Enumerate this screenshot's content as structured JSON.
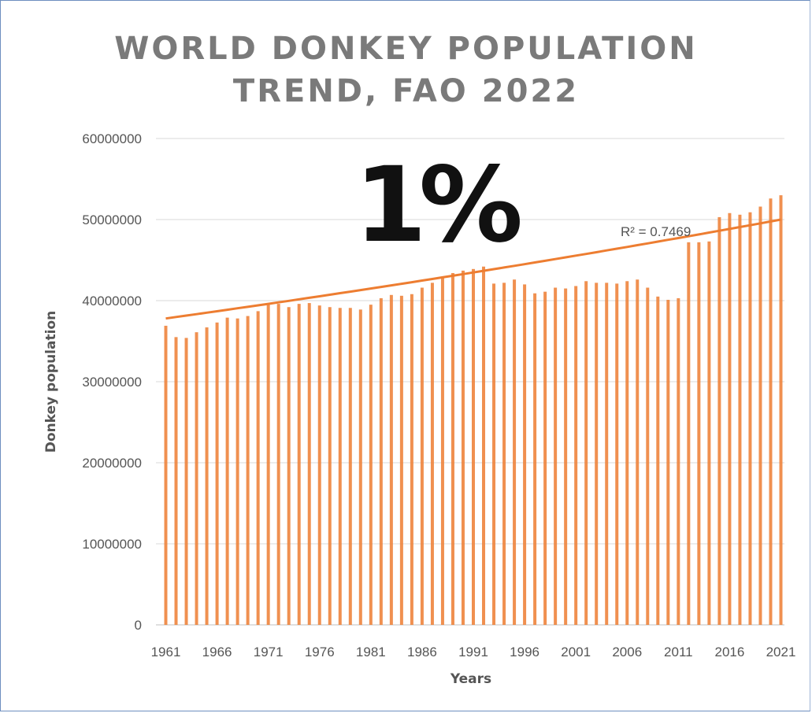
{
  "chart_data": {
    "type": "bar",
    "title_line1": "WORLD DONKEY POPULATION",
    "title_line2": "TREND, FAO 2022",
    "annotation": "1%",
    "trendline_label": "R² = 0.7469",
    "xlabel": "Years",
    "ylabel": "Donkey population",
    "ylim": [
      0,
      60000000
    ],
    "yticks": [
      "0",
      "10000000",
      "20000000",
      "30000000",
      "40000000",
      "50000000",
      "60000000"
    ],
    "ytick_values": [
      0,
      10000000,
      20000000,
      30000000,
      40000000,
      50000000,
      60000000
    ],
    "xticks": [
      "1961",
      "1966",
      "1971",
      "1976",
      "1981",
      "1986",
      "1991",
      "1996",
      "2001",
      "2006",
      "2011",
      "2016",
      "2021"
    ],
    "years": [
      1961,
      1962,
      1963,
      1964,
      1965,
      1966,
      1967,
      1968,
      1969,
      1970,
      1971,
      1972,
      1973,
      1974,
      1975,
      1976,
      1977,
      1978,
      1979,
      1980,
      1981,
      1982,
      1983,
      1984,
      1985,
      1986,
      1987,
      1988,
      1989,
      1990,
      1991,
      1992,
      1993,
      1994,
      1995,
      1996,
      1997,
      1998,
      1999,
      2000,
      2001,
      2002,
      2003,
      2004,
      2005,
      2006,
      2007,
      2008,
      2009,
      2010,
      2011,
      2012,
      2013,
      2014,
      2015,
      2016,
      2017,
      2018,
      2019,
      2020,
      2021
    ],
    "values": [
      36900000,
      35500000,
      35400000,
      36100000,
      36700000,
      37300000,
      37900000,
      37800000,
      38100000,
      38700000,
      39600000,
      39600000,
      39200000,
      39600000,
      39700000,
      39400000,
      39200000,
      39100000,
      39100000,
      38900000,
      39500000,
      40300000,
      40700000,
      40600000,
      40800000,
      41600000,
      42200000,
      42800000,
      43400000,
      43700000,
      43900000,
      44200000,
      42100000,
      42200000,
      42600000,
      42000000,
      40900000,
      41100000,
      41600000,
      41500000,
      41800000,
      42400000,
      42200000,
      42200000,
      42100000,
      42400000,
      42600000,
      41600000,
      40500000,
      40100000,
      40300000,
      47200000,
      47200000,
      47300000,
      50300000,
      50800000,
      50600000,
      50900000,
      51600000,
      52600000,
      53000000
    ],
    "trend": [
      37800000,
      50000000
    ],
    "bar_color": "#ed7d31",
    "trend_color": "#ed7d31"
  }
}
